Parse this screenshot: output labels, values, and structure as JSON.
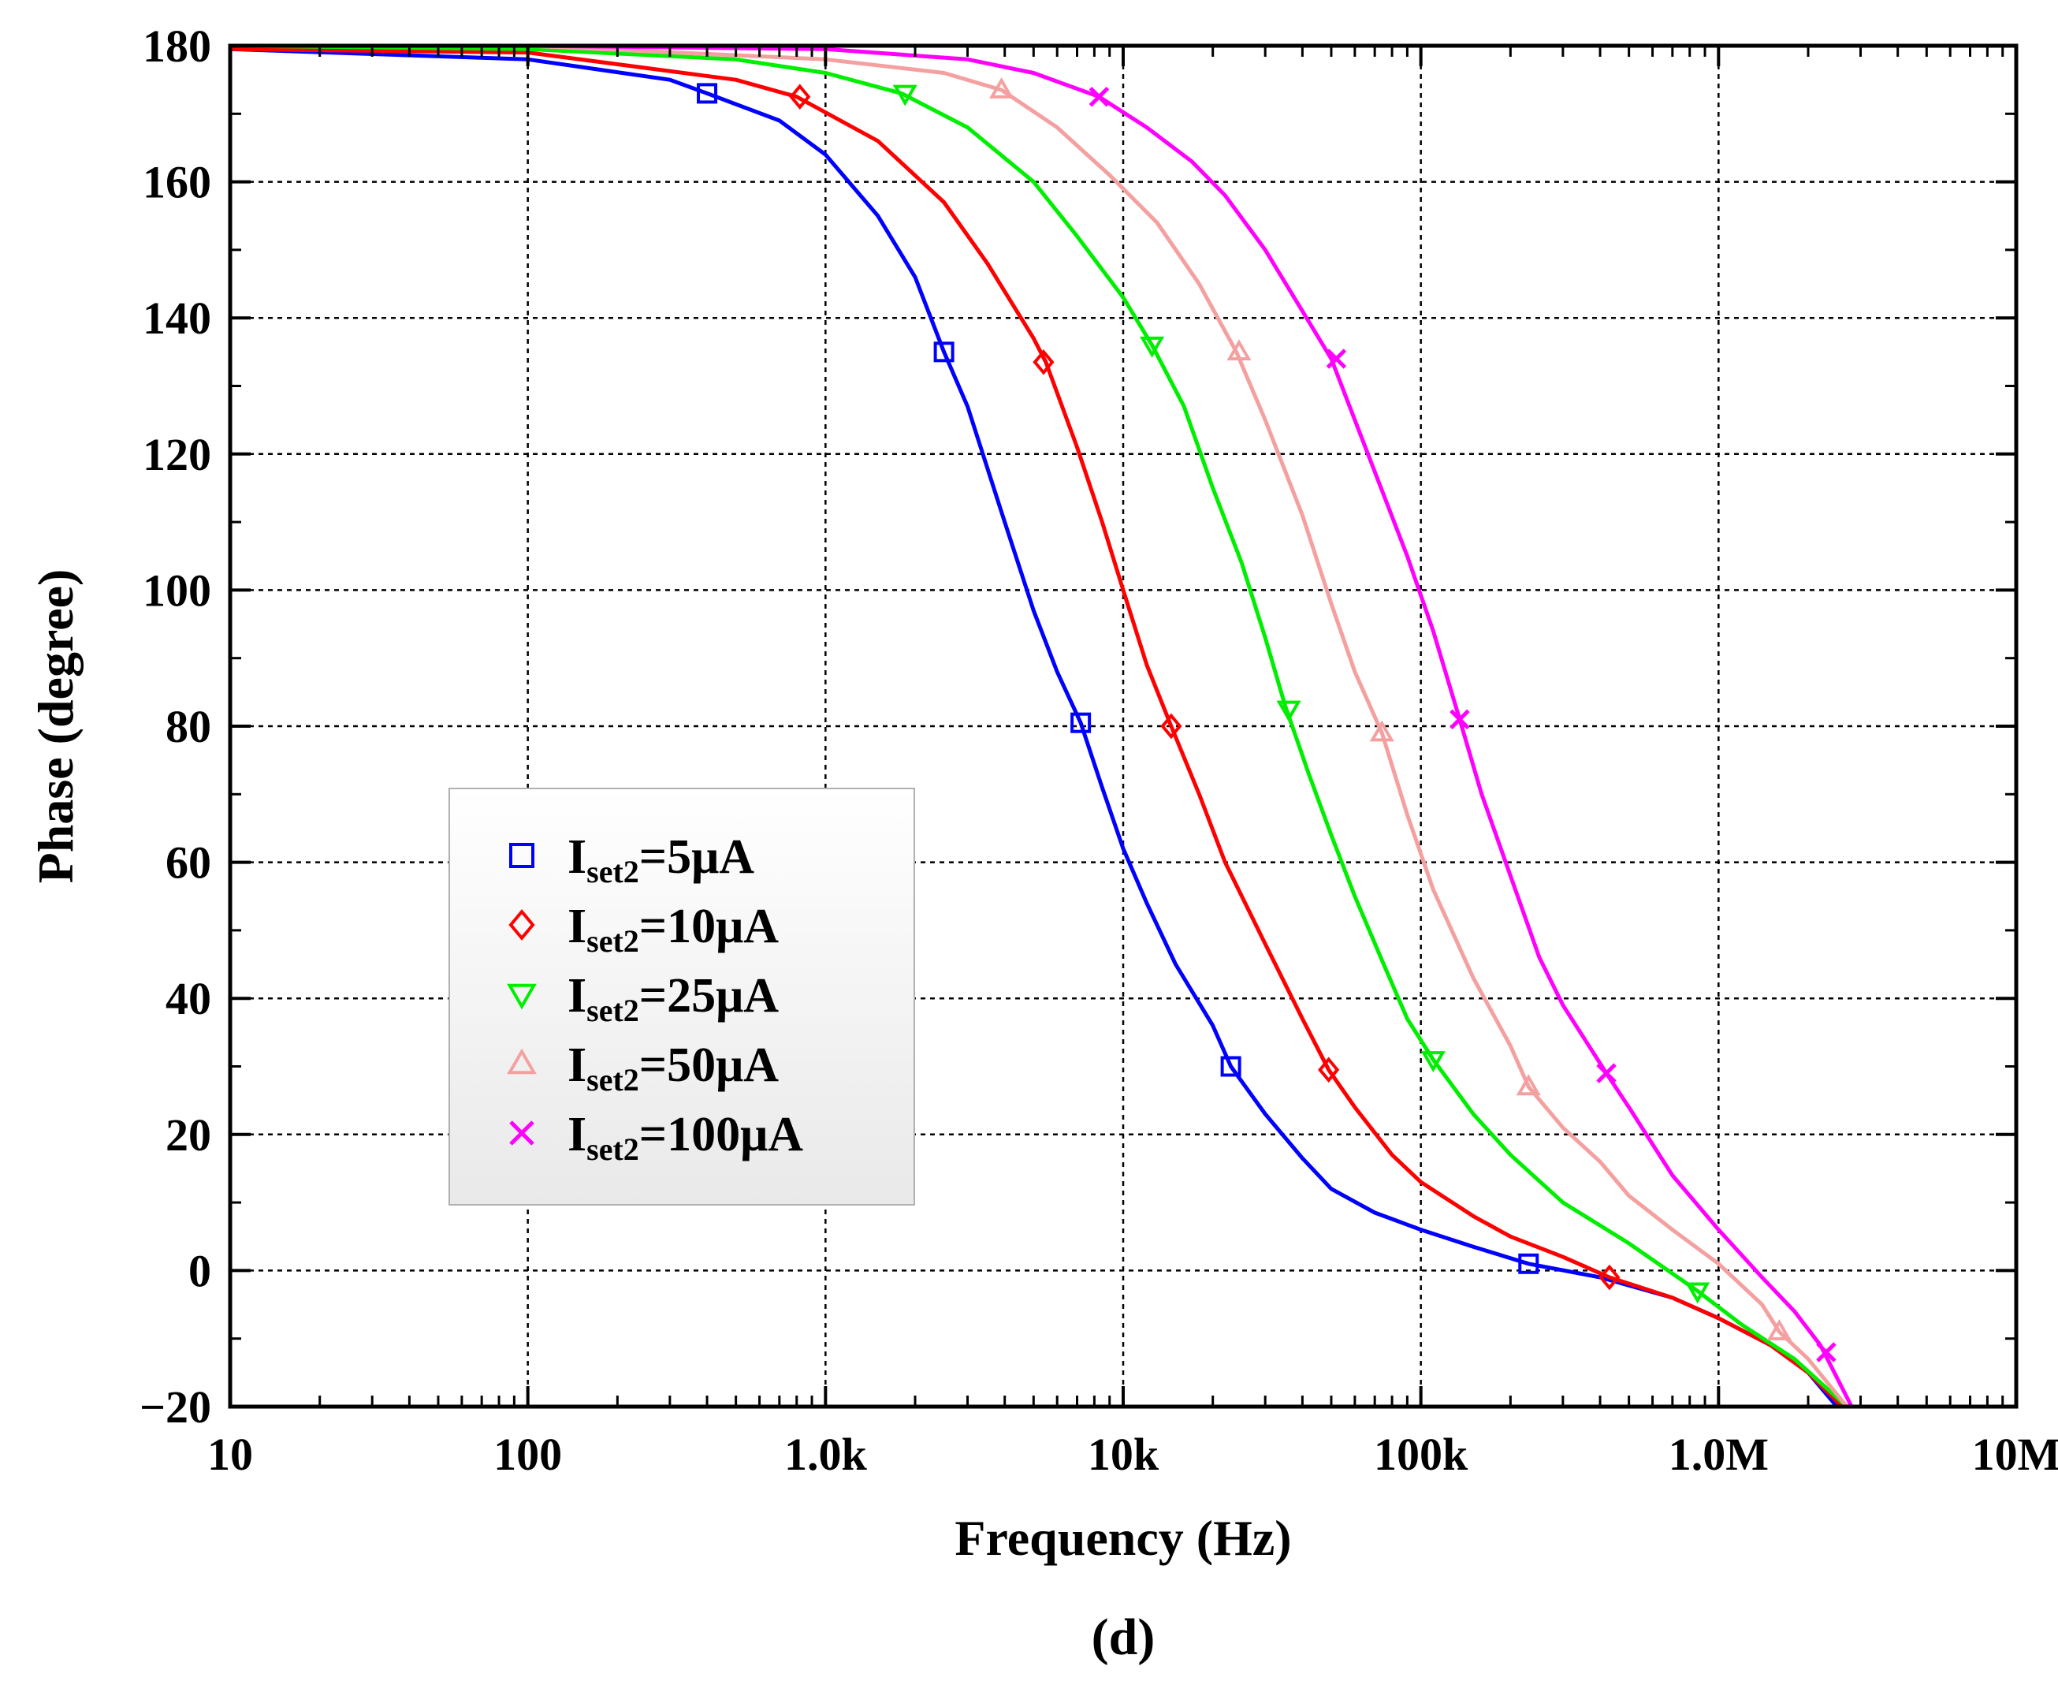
{
  "chart_data": {
    "type": "line",
    "title": "",
    "caption": "(d)",
    "xlabel": "Frequency (Hz)",
    "ylabel": "Phase (degree)",
    "xscale": "log",
    "xlim": [
      10,
      10000000
    ],
    "ylim": [
      -20,
      180
    ],
    "x_ticks": [
      {
        "value": 10,
        "label": "10"
      },
      {
        "value": 100,
        "label": "100"
      },
      {
        "value": 1000,
        "label": "1.0k"
      },
      {
        "value": 10000,
        "label": "10k"
      },
      {
        "value": 100000,
        "label": "100k"
      },
      {
        "value": 1000000,
        "label": "1.0M"
      },
      {
        "value": 10000000,
        "label": "10M"
      }
    ],
    "y_ticks": [
      {
        "value": 180,
        "label": "180"
      },
      {
        "value": 160,
        "label": "160"
      },
      {
        "value": 140,
        "label": "140"
      },
      {
        "value": 120,
        "label": "120"
      },
      {
        "value": 100,
        "label": "100"
      },
      {
        "value": 80,
        "label": "80"
      },
      {
        "value": 60,
        "label": "60"
      },
      {
        "value": 40,
        "label": "40"
      },
      {
        "value": 20,
        "label": "20"
      },
      {
        "value": 0,
        "label": "0"
      },
      {
        "value": -20,
        "label": "−20"
      }
    ],
    "grid": true,
    "legend_position": "center-left",
    "series": [
      {
        "name": "Iset2=5μA",
        "label_main": "I",
        "label_sub": "set2",
        "label_rest": "=5μA",
        "color": "#0000ff",
        "marker": "square",
        "points": [
          [
            10,
            179.5
          ],
          [
            100,
            178
          ],
          [
            300,
            175
          ],
          [
            400,
            173
          ],
          [
            700,
            169
          ],
          [
            1000,
            164
          ],
          [
            1500,
            155
          ],
          [
            2000,
            146
          ],
          [
            2500,
            135
          ],
          [
            3000,
            127
          ],
          [
            4000,
            110
          ],
          [
            5000,
            97
          ],
          [
            6000,
            88
          ],
          [
            7200,
            80.5
          ],
          [
            8500,
            71
          ],
          [
            10000,
            62
          ],
          [
            12000,
            54
          ],
          [
            15000,
            45
          ],
          [
            20000,
            36
          ],
          [
            23000,
            30
          ],
          [
            30000,
            23
          ],
          [
            40000,
            16.5
          ],
          [
            50000,
            12
          ],
          [
            70000,
            8.5
          ],
          [
            100000,
            6
          ],
          [
            150000,
            3.5
          ],
          [
            230000,
            1
          ],
          [
            400000,
            -1
          ],
          [
            700000,
            -4
          ],
          [
            1000000,
            -7
          ],
          [
            1500000,
            -11
          ],
          [
            2000000,
            -15
          ],
          [
            2500000,
            -20
          ]
        ],
        "markers": [
          [
            400,
            173
          ],
          [
            2500,
            135
          ],
          [
            7200,
            80.5
          ],
          [
            23000,
            30
          ],
          [
            230000,
            1
          ]
        ]
      },
      {
        "name": "Iset2=10μA",
        "label_main": "I",
        "label_sub": "set2",
        "label_rest": "=10μA",
        "color": "#ff0000",
        "marker": "diamond",
        "points": [
          [
            10,
            179.5
          ],
          [
            100,
            179
          ],
          [
            500,
            175
          ],
          [
            800,
            172.5
          ],
          [
            1500,
            166
          ],
          [
            2500,
            157
          ],
          [
            3500,
            148
          ],
          [
            5000,
            137
          ],
          [
            5500,
            133.5
          ],
          [
            7000,
            121
          ],
          [
            8500,
            110
          ],
          [
            10000,
            100
          ],
          [
            12000,
            89
          ],
          [
            14500,
            80
          ],
          [
            18000,
            70
          ],
          [
            22000,
            60
          ],
          [
            30000,
            48
          ],
          [
            40000,
            37
          ],
          [
            49000,
            29.5
          ],
          [
            60000,
            24
          ],
          [
            80000,
            17
          ],
          [
            100000,
            13
          ],
          [
            150000,
            8
          ],
          [
            200000,
            5
          ],
          [
            300000,
            2
          ],
          [
            430000,
            -1
          ],
          [
            700000,
            -4
          ],
          [
            1000000,
            -7
          ],
          [
            1500000,
            -11
          ],
          [
            2000000,
            -15
          ],
          [
            2600000,
            -20
          ]
        ],
        "markers": [
          [
            820,
            172.5
          ],
          [
            5400,
            133.5
          ],
          [
            14500,
            80
          ],
          [
            49000,
            29.5
          ],
          [
            430000,
            -1
          ]
        ]
      },
      {
        "name": "Iset2=25μA",
        "label_main": "I",
        "label_sub": "set2",
        "label_rest": "=25μA",
        "color": "#00ee00",
        "marker": "triangle-down",
        "points": [
          [
            10,
            180
          ],
          [
            100,
            179.5
          ],
          [
            500,
            178
          ],
          [
            1000,
            176
          ],
          [
            1800,
            173
          ],
          [
            3000,
            168
          ],
          [
            5000,
            160
          ],
          [
            7000,
            152
          ],
          [
            10000,
            143
          ],
          [
            12500,
            136
          ],
          [
            16000,
            127
          ],
          [
            20000,
            115
          ],
          [
            25000,
            104
          ],
          [
            30000,
            93
          ],
          [
            35000,
            83
          ],
          [
            42000,
            73
          ],
          [
            50000,
            64
          ],
          [
            60000,
            55
          ],
          [
            75000,
            45
          ],
          [
            90000,
            37
          ],
          [
            110000,
            31
          ],
          [
            150000,
            23
          ],
          [
            200000,
            17
          ],
          [
            300000,
            10
          ],
          [
            500000,
            4
          ],
          [
            850000,
            -3
          ],
          [
            1200000,
            -8
          ],
          [
            1800000,
            -13
          ],
          [
            2700000,
            -20
          ]
        ],
        "markers": [
          [
            1850,
            173
          ],
          [
            12500,
            136
          ],
          [
            36000,
            82.5
          ],
          [
            110000,
            31
          ],
          [
            850000,
            -3
          ]
        ]
      },
      {
        "name": "Iset2=50μA",
        "label_main": "I",
        "label_sub": "set2",
        "label_rest": "=50μA",
        "color": "#f5a0a0",
        "marker": "triangle-up",
        "points": [
          [
            10,
            180
          ],
          [
            100,
            180
          ],
          [
            1000,
            178
          ],
          [
            2500,
            176
          ],
          [
            3900,
            173.5
          ],
          [
            6000,
            168
          ],
          [
            9000,
            161
          ],
          [
            13000,
            154
          ],
          [
            18000,
            145
          ],
          [
            24000,
            135
          ],
          [
            30000,
            125
          ],
          [
            40000,
            111
          ],
          [
            50000,
            98
          ],
          [
            60000,
            88
          ],
          [
            74000,
            79
          ],
          [
            90000,
            67
          ],
          [
            110000,
            56
          ],
          [
            150000,
            43
          ],
          [
            200000,
            33
          ],
          [
            230000,
            27
          ],
          [
            300000,
            21
          ],
          [
            400000,
            16
          ],
          [
            500000,
            11
          ],
          [
            700000,
            6
          ],
          [
            1000000,
            1
          ],
          [
            1400000,
            -5
          ],
          [
            1600000,
            -9
          ],
          [
            2000000,
            -13
          ],
          [
            2700000,
            -20
          ]
        ],
        "markers": [
          [
            3900,
            173.5
          ],
          [
            24500,
            135
          ],
          [
            74000,
            79
          ],
          [
            230000,
            27
          ],
          [
            1600000,
            -9
          ]
        ]
      },
      {
        "name": "Iset2=100μA",
        "label_main": "I",
        "label_sub": "set2",
        "label_rest": "=100μA",
        "color": "#ff00ff",
        "marker": "x",
        "points": [
          [
            10,
            180
          ],
          [
            100,
            180
          ],
          [
            1000,
            179.5
          ],
          [
            3000,
            178
          ],
          [
            5000,
            176
          ],
          [
            8300,
            172.5
          ],
          [
            12000,
            168
          ],
          [
            17000,
            163
          ],
          [
            22000,
            158
          ],
          [
            30000,
            150
          ],
          [
            40000,
            141
          ],
          [
            50000,
            134
          ],
          [
            60000,
            125
          ],
          [
            75000,
            114
          ],
          [
            90000,
            105
          ],
          [
            110000,
            94
          ],
          [
            135000,
            81
          ],
          [
            160000,
            70
          ],
          [
            200000,
            58
          ],
          [
            250000,
            46
          ],
          [
            300000,
            39
          ],
          [
            420000,
            29
          ],
          [
            500000,
            24
          ],
          [
            700000,
            14
          ],
          [
            1000000,
            6
          ],
          [
            1400000,
            -1
          ],
          [
            1800000,
            -6
          ],
          [
            2200000,
            -11
          ],
          [
            2800000,
            -20
          ]
        ],
        "markers": [
          [
            8300,
            172.5
          ],
          [
            52000,
            134
          ],
          [
            135000,
            81
          ],
          [
            420000,
            29
          ],
          [
            2300000,
            -12
          ]
        ]
      }
    ]
  }
}
